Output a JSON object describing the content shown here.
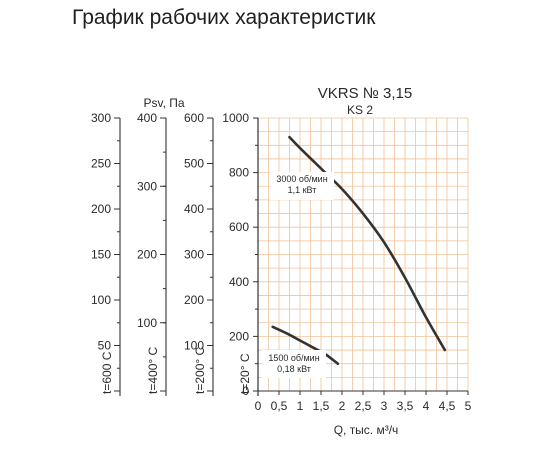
{
  "page_title": "График рабочих характеристик",
  "colors": {
    "grid": "#f0c39a",
    "curve": "#333333",
    "axis": "#333333",
    "text": "#2a2a2a"
  },
  "chart_data": {
    "type": "line",
    "title": "VKRS № 3,15",
    "subtitle": "KS 2",
    "xlabel": "Q, тыс. м³/ч",
    "ylabel": "Psv, Па",
    "xlim": [
      0,
      5
    ],
    "ylim": [
      0,
      1000
    ],
    "grid": true,
    "x_ticks": [
      "0",
      "0,5",
      "1",
      "1,5",
      "2",
      "2,5",
      "3",
      "3,5",
      "4",
      "4,5",
      "5"
    ],
    "y_ticks": [
      "0",
      "200",
      "400",
      "600",
      "800",
      "1000"
    ],
    "series": [
      {
        "name": "3000 об/мин",
        "label_line1": "3000 об/мин",
        "label_line2": "1,1 кВт",
        "x": [
          0.75,
          1.0,
          1.5,
          2.0,
          2.5,
          3.0,
          3.5,
          4.0,
          4.45
        ],
        "y": [
          930,
          890,
          815,
          740,
          650,
          545,
          415,
          270,
          150
        ]
      },
      {
        "name": "1500 об/мин",
        "label_line1": "1500 об/мин",
        "label_line2": "0,18 кВт",
        "x": [
          0.35,
          0.7,
          1.0,
          1.3,
          1.6,
          1.9
        ],
        "y": [
          235,
          210,
          185,
          160,
          135,
          100
        ]
      }
    ],
    "temperature_scales": [
      {
        "label": "t=600 C",
        "ticks": [
          "0",
          "50",
          "100",
          "150",
          "200",
          "250",
          "300"
        ],
        "max": 300
      },
      {
        "label": "t=400° C",
        "ticks": [
          "0",
          "100",
          "200",
          "300",
          "400"
        ],
        "max": 400
      },
      {
        "label": "t=200° C",
        "ticks": [
          "0",
          "100",
          "200",
          "300",
          "400",
          "500",
          "600"
        ],
        "max": 600
      },
      {
        "label": "t=20° C",
        "ticks": [],
        "max": 1000
      }
    ]
  }
}
